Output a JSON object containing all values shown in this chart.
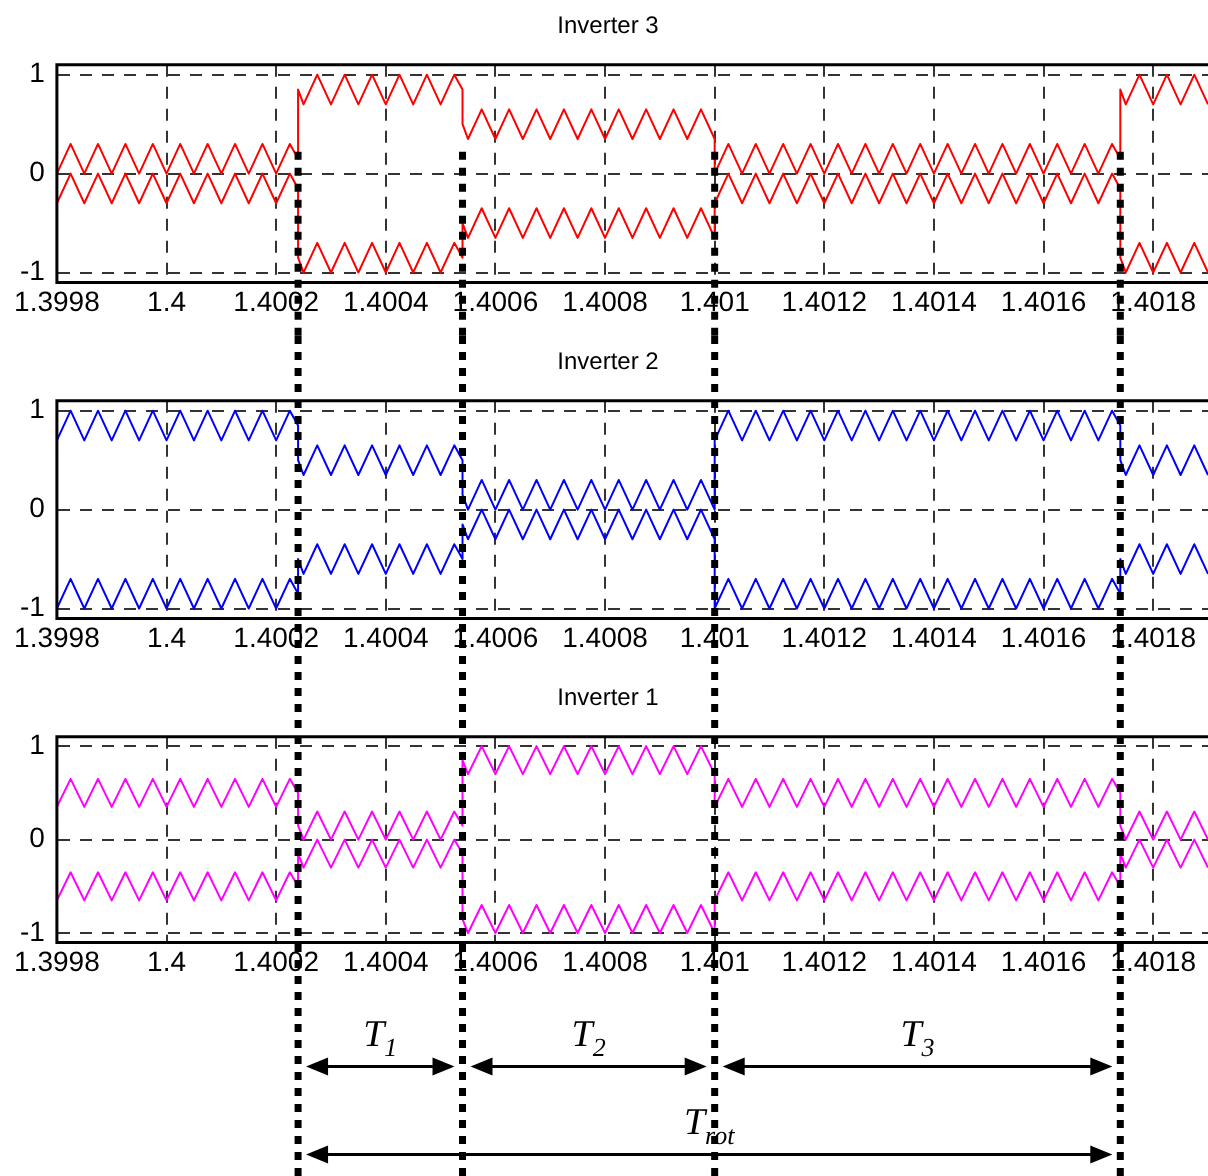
{
  "chart_data": [
    {
      "type": "line",
      "title": "Inverter 3",
      "xlim": [
        1.3998,
        1.4019
      ],
      "ylim": [
        -1.1,
        1.1
      ],
      "xticks": [
        1.3998,
        1.4,
        1.4002,
        1.4004,
        1.4006,
        1.4008,
        1.401,
        1.4012,
        1.4014,
        1.4016,
        1.4018
      ],
      "yticks": [
        -1,
        0,
        1
      ],
      "grid": true,
      "legend": false,
      "marker": "none",
      "line_style": "solid",
      "x": [
        1.3998,
        1.399825,
        1.39985,
        1.399875,
        1.3999,
        1.399925,
        1.39995,
        1.399975,
        1.4,
        1.400025,
        1.40005,
        1.400075,
        1.4001,
        1.400125,
        1.40015,
        1.400175,
        1.4002,
        1.400225,
        1.40024,
        1.40024,
        1.40025,
        1.400275,
        1.4003,
        1.400325,
        1.40035,
        1.400375,
        1.4004,
        1.400425,
        1.40045,
        1.400475,
        1.4005,
        1.400525,
        1.40054,
        1.40054,
        1.40055,
        1.400575,
        1.4006,
        1.400625,
        1.40065,
        1.400675,
        1.4007,
        1.400725,
        1.40075,
        1.400775,
        1.4008,
        1.400825,
        1.40085,
        1.400875,
        1.4009,
        1.400925,
        1.40095,
        1.400975,
        1.401,
        1.401,
        1.401025,
        1.40105,
        1.401075,
        1.4011,
        1.401125,
        1.40115,
        1.401175,
        1.4012,
        1.401225,
        1.40125,
        1.401275,
        1.4013,
        1.401325,
        1.40135,
        1.401375,
        1.4014,
        1.401425,
        1.40145,
        1.401475,
        1.4015,
        1.401525,
        1.40155,
        1.401575,
        1.4016,
        1.401625,
        1.40165,
        1.401675,
        1.4017,
        1.401725,
        1.40174,
        1.40174,
        1.40175,
        1.401775,
        1.4018,
        1.401825,
        1.40185,
        1.401875,
        1.4019
      ],
      "series": [
        {
          "color": "#ff0000",
          "values": [
            0,
            0.3,
            0,
            0.3,
            0,
            0.3,
            0,
            0.3,
            0,
            0.3,
            0,
            0.3,
            0,
            0.3,
            0,
            0.3,
            0,
            0.3,
            0.15,
            0.85,
            0.7,
            1,
            0.7,
            1,
            0.7,
            1,
            0.7,
            1,
            0.7,
            1,
            0.7,
            1,
            0.85,
            0.5,
            0.35,
            0.65,
            0.35,
            0.65,
            0.35,
            0.65,
            0.35,
            0.65,
            0.35,
            0.65,
            0.35,
            0.65,
            0.35,
            0.65,
            0.35,
            0.65,
            0.35,
            0.65,
            0.35,
            0,
            0.3,
            0,
            0.3,
            0,
            0.3,
            0,
            0.3,
            0,
            0.3,
            0,
            0.3,
            0,
            0.3,
            0,
            0.3,
            0,
            0.3,
            0,
            0.3,
            0,
            0.3,
            0,
            0.3,
            0,
            0.3,
            0,
            0.3,
            0,
            0.3,
            0.15,
            0.85,
            0.7,
            1,
            0.7,
            1,
            0.7,
            1,
            0.7
          ]
        },
        {
          "color": "#ff0000",
          "values": [
            -0.3,
            0,
            -0.3,
            0,
            -0.3,
            0,
            -0.3,
            0,
            -0.3,
            0,
            -0.3,
            0,
            -0.3,
            0,
            -0.3,
            0,
            -0.3,
            0,
            -0.15,
            -0.85,
            -1,
            -0.7,
            -1,
            -0.7,
            -1,
            -0.7,
            -1,
            -0.7,
            -1,
            -0.7,
            -1,
            -0.7,
            -0.85,
            -0.5,
            -0.65,
            -0.35,
            -0.65,
            -0.35,
            -0.65,
            -0.35,
            -0.65,
            -0.35,
            -0.65,
            -0.35,
            -0.65,
            -0.35,
            -0.65,
            -0.35,
            -0.65,
            -0.35,
            -0.65,
            -0.35,
            -0.65,
            -0.3,
            0,
            -0.3,
            0,
            -0.3,
            0,
            -0.3,
            0,
            -0.3,
            0,
            -0.3,
            0,
            -0.3,
            0,
            -0.3,
            0,
            -0.3,
            0,
            -0.3,
            0,
            -0.3,
            0,
            -0.3,
            0,
            -0.3,
            0,
            -0.3,
            0,
            -0.3,
            0,
            -0.15,
            -0.85,
            -1,
            -0.7,
            -1,
            -0.7,
            -1,
            -0.7,
            -1
          ]
        }
      ],
      "ref_lines": [
        {
          "axis": "x",
          "value": 1.40024,
          "color": "#000000",
          "line_style": "dotted"
        },
        {
          "axis": "x",
          "value": 1.40054,
          "color": "#000000",
          "line_style": "dotted"
        },
        {
          "axis": "x",
          "value": 1.401,
          "color": "#000000",
          "line_style": "dotted"
        },
        {
          "axis": "x",
          "value": 1.40174,
          "color": "#000000",
          "line_style": "dotted"
        }
      ]
    },
    {
      "type": "line",
      "title": "Inverter 2",
      "xlim": [
        1.3998,
        1.4019
      ],
      "ylim": [
        -1.1,
        1.1
      ],
      "xticks": [
        1.3998,
        1.4,
        1.4002,
        1.4004,
        1.4006,
        1.4008,
        1.401,
        1.4012,
        1.4014,
        1.4016,
        1.4018
      ],
      "yticks": [
        -1,
        0,
        1
      ],
      "grid": true,
      "legend": false,
      "marker": "none",
      "line_style": "solid",
      "x": [
        1.3998,
        1.399825,
        1.39985,
        1.399875,
        1.3999,
        1.399925,
        1.39995,
        1.399975,
        1.4,
        1.400025,
        1.40005,
        1.400075,
        1.4001,
        1.400125,
        1.40015,
        1.400175,
        1.4002,
        1.400225,
        1.40024,
        1.40024,
        1.40025,
        1.400275,
        1.4003,
        1.400325,
        1.40035,
        1.400375,
        1.4004,
        1.400425,
        1.40045,
        1.400475,
        1.4005,
        1.400525,
        1.40054,
        1.40054,
        1.40055,
        1.400575,
        1.4006,
        1.400625,
        1.40065,
        1.400675,
        1.4007,
        1.400725,
        1.40075,
        1.400775,
        1.4008,
        1.400825,
        1.40085,
        1.400875,
        1.4009,
        1.400925,
        1.40095,
        1.400975,
        1.401,
        1.401,
        1.401025,
        1.40105,
        1.401075,
        1.4011,
        1.401125,
        1.40115,
        1.401175,
        1.4012,
        1.401225,
        1.40125,
        1.401275,
        1.4013,
        1.401325,
        1.40135,
        1.401375,
        1.4014,
        1.401425,
        1.40145,
        1.401475,
        1.4015,
        1.401525,
        1.40155,
        1.401575,
        1.4016,
        1.401625,
        1.40165,
        1.401675,
        1.4017,
        1.401725,
        1.40174,
        1.40174,
        1.40175,
        1.401775,
        1.4018,
        1.401825,
        1.40185,
        1.401875,
        1.4019
      ],
      "series": [
        {
          "color": "#0000ff",
          "values": [
            0.7,
            1,
            0.7,
            1,
            0.7,
            1,
            0.7,
            1,
            0.7,
            1,
            0.7,
            1,
            0.7,
            1,
            0.7,
            1,
            0.7,
            1,
            0.85,
            0.5,
            0.35,
            0.65,
            0.35,
            0.65,
            0.35,
            0.65,
            0.35,
            0.65,
            0.35,
            0.65,
            0.35,
            0.65,
            0.5,
            0.15,
            0,
            0.3,
            0,
            0.3,
            0,
            0.3,
            0,
            0.3,
            0,
            0.3,
            0,
            0.3,
            0,
            0.3,
            0,
            0.3,
            0,
            0.3,
            0,
            0.7,
            1,
            0.7,
            1,
            0.7,
            1,
            0.7,
            1,
            0.7,
            1,
            0.7,
            1,
            0.7,
            1,
            0.7,
            1,
            0.7,
            1,
            0.7,
            1,
            0.7,
            1,
            0.7,
            1,
            0.7,
            1,
            0.7,
            1,
            0.7,
            1,
            0.85,
            0.5,
            0.35,
            0.65,
            0.35,
            0.65,
            0.35,
            0.65,
            0.35
          ]
        },
        {
          "color": "#0000ff",
          "values": [
            -1,
            -0.7,
            -1,
            -0.7,
            -1,
            -0.7,
            -1,
            -0.7,
            -1,
            -0.7,
            -1,
            -0.7,
            -1,
            -0.7,
            -1,
            -0.7,
            -1,
            -0.7,
            -0.85,
            -0.5,
            -0.65,
            -0.35,
            -0.65,
            -0.35,
            -0.65,
            -0.35,
            -0.65,
            -0.35,
            -0.65,
            -0.35,
            -0.65,
            -0.35,
            -0.5,
            -0.15,
            -0.3,
            0,
            -0.3,
            0,
            -0.3,
            0,
            -0.3,
            0,
            -0.3,
            0,
            -0.3,
            0,
            -0.3,
            0,
            -0.3,
            0,
            -0.3,
            0,
            -0.3,
            -1,
            -0.7,
            -1,
            -0.7,
            -1,
            -0.7,
            -1,
            -0.7,
            -1,
            -0.7,
            -1,
            -0.7,
            -1,
            -0.7,
            -1,
            -0.7,
            -1,
            -0.7,
            -1,
            -0.7,
            -1,
            -0.7,
            -1,
            -0.7,
            -1,
            -0.7,
            -1,
            -0.7,
            -1,
            -0.7,
            -0.85,
            -0.5,
            -0.65,
            -0.35,
            -0.65,
            -0.35,
            -0.65,
            -0.35,
            -0.65
          ]
        }
      ],
      "ref_lines": [
        {
          "axis": "x",
          "value": 1.40024,
          "color": "#000000",
          "line_style": "dotted"
        },
        {
          "axis": "x",
          "value": 1.40054,
          "color": "#000000",
          "line_style": "dotted"
        },
        {
          "axis": "x",
          "value": 1.401,
          "color": "#000000",
          "line_style": "dotted"
        },
        {
          "axis": "x",
          "value": 1.40174,
          "color": "#000000",
          "line_style": "dotted"
        }
      ]
    },
    {
      "type": "line",
      "title": "Inverter 1",
      "xlim": [
        1.3998,
        1.4019
      ],
      "ylim": [
        -1.1,
        1.1
      ],
      "xticks": [
        1.3998,
        1.4,
        1.4002,
        1.4004,
        1.4006,
        1.4008,
        1.401,
        1.4012,
        1.4014,
        1.4016,
        1.4018
      ],
      "yticks": [
        -1,
        0,
        1
      ],
      "grid": true,
      "legend": false,
      "marker": "none",
      "line_style": "solid",
      "x": [
        1.3998,
        1.399825,
        1.39985,
        1.399875,
        1.3999,
        1.399925,
        1.39995,
        1.399975,
        1.4,
        1.400025,
        1.40005,
        1.400075,
        1.4001,
        1.400125,
        1.40015,
        1.400175,
        1.4002,
        1.400225,
        1.40024,
        1.40024,
        1.40025,
        1.400275,
        1.4003,
        1.400325,
        1.40035,
        1.400375,
        1.4004,
        1.400425,
        1.40045,
        1.400475,
        1.4005,
        1.400525,
        1.40054,
        1.40054,
        1.40055,
        1.400575,
        1.4006,
        1.400625,
        1.40065,
        1.400675,
        1.4007,
        1.400725,
        1.40075,
        1.400775,
        1.4008,
        1.400825,
        1.40085,
        1.400875,
        1.4009,
        1.400925,
        1.40095,
        1.400975,
        1.401,
        1.401,
        1.401025,
        1.40105,
        1.401075,
        1.4011,
        1.401125,
        1.40115,
        1.401175,
        1.4012,
        1.401225,
        1.40125,
        1.401275,
        1.4013,
        1.401325,
        1.40135,
        1.401375,
        1.4014,
        1.401425,
        1.40145,
        1.401475,
        1.4015,
        1.401525,
        1.40155,
        1.401575,
        1.4016,
        1.401625,
        1.40165,
        1.401675,
        1.4017,
        1.401725,
        1.40174,
        1.40174,
        1.40175,
        1.401775,
        1.4018,
        1.401825,
        1.40185,
        1.401875,
        1.4019
      ],
      "series": [
        {
          "color": "#ff00ff",
          "values": [
            0.35,
            0.65,
            0.35,
            0.65,
            0.35,
            0.65,
            0.35,
            0.65,
            0.35,
            0.65,
            0.35,
            0.65,
            0.35,
            0.65,
            0.35,
            0.65,
            0.35,
            0.65,
            0.5,
            0.15,
            0,
            0.3,
            0,
            0.3,
            0,
            0.3,
            0,
            0.3,
            0,
            0.3,
            0,
            0.3,
            0.15,
            0.85,
            0.7,
            1,
            0.7,
            1,
            0.7,
            1,
            0.7,
            1,
            0.7,
            1,
            0.7,
            1,
            0.7,
            1,
            0.7,
            1,
            0.7,
            1,
            0.7,
            0.35,
            0.65,
            0.35,
            0.65,
            0.35,
            0.65,
            0.35,
            0.65,
            0.35,
            0.65,
            0.35,
            0.65,
            0.35,
            0.65,
            0.35,
            0.65,
            0.35,
            0.65,
            0.35,
            0.65,
            0.35,
            0.65,
            0.35,
            0.65,
            0.35,
            0.65,
            0.35,
            0.65,
            0.35,
            0.65,
            0.5,
            0.15,
            0,
            0.3,
            0,
            0.3,
            0,
            0.3,
            0
          ]
        },
        {
          "color": "#ff00ff",
          "values": [
            -0.65,
            -0.35,
            -0.65,
            -0.35,
            -0.65,
            -0.35,
            -0.65,
            -0.35,
            -0.65,
            -0.35,
            -0.65,
            -0.35,
            -0.65,
            -0.35,
            -0.65,
            -0.35,
            -0.65,
            -0.35,
            -0.5,
            -0.15,
            -0.3,
            0,
            -0.3,
            0,
            -0.3,
            0,
            -0.3,
            0,
            -0.3,
            0,
            -0.3,
            0,
            -0.15,
            -0.85,
            -1,
            -0.7,
            -1,
            -0.7,
            -1,
            -0.7,
            -1,
            -0.7,
            -1,
            -0.7,
            -1,
            -0.7,
            -1,
            -0.7,
            -1,
            -0.7,
            -1,
            -0.7,
            -1,
            -0.65,
            -0.35,
            -0.65,
            -0.35,
            -0.65,
            -0.35,
            -0.65,
            -0.35,
            -0.65,
            -0.35,
            -0.65,
            -0.35,
            -0.65,
            -0.35,
            -0.65,
            -0.35,
            -0.65,
            -0.35,
            -0.65,
            -0.35,
            -0.65,
            -0.35,
            -0.65,
            -0.35,
            -0.65,
            -0.35,
            -0.65,
            -0.35,
            -0.65,
            -0.35,
            -0.5,
            -0.15,
            -0.3,
            0,
            -0.3,
            0,
            -0.3,
            0,
            -0.3
          ]
        }
      ],
      "ref_lines": [
        {
          "axis": "x",
          "value": 1.40024,
          "color": "#000000",
          "line_style": "dotted"
        },
        {
          "axis": "x",
          "value": 1.40054,
          "color": "#000000",
          "line_style": "dotted"
        },
        {
          "axis": "x",
          "value": 1.401,
          "color": "#000000",
          "line_style": "dotted"
        },
        {
          "axis": "x",
          "value": 1.40174,
          "color": "#000000",
          "line_style": "dotted"
        }
      ],
      "annotations": [
        "T$_{1}$",
        "T$_{2}$",
        "T$_{3}$",
        "T$_{rot}$"
      ]
    }
  ]
}
